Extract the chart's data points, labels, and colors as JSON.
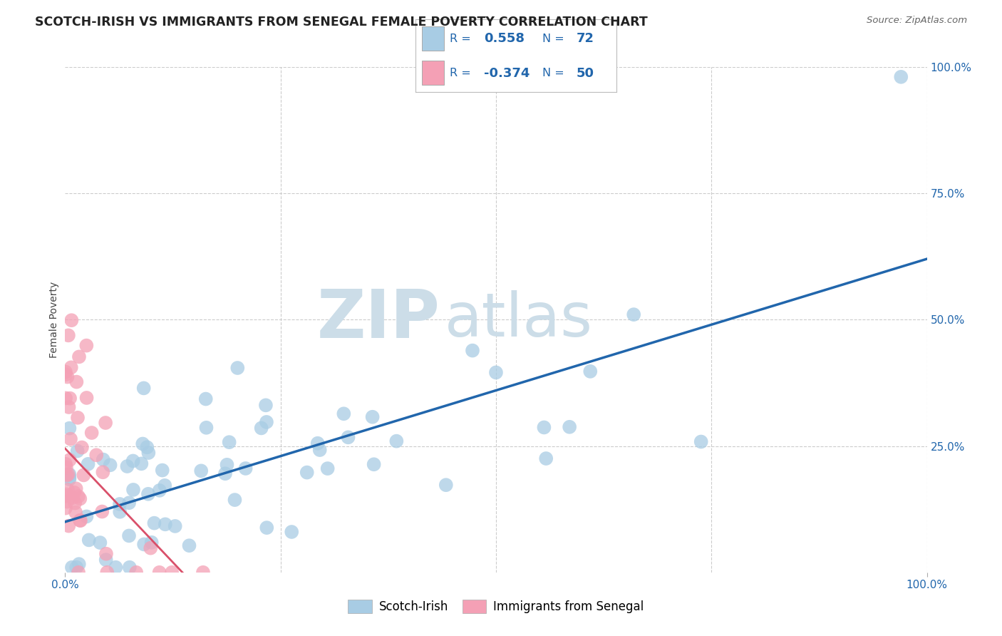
{
  "title": "SCOTCH-IRISH VS IMMIGRANTS FROM SENEGAL FEMALE POVERTY CORRELATION CHART",
  "source": "Source: ZipAtlas.com",
  "ylabel": "Female Poverty",
  "xlim": [
    0,
    1
  ],
  "ylim": [
    0,
    1
  ],
  "ytick_labels_right": [
    "100.0%",
    "75.0%",
    "50.0%",
    "25.0%"
  ],
  "ytick_vals_right": [
    1.0,
    0.75,
    0.5,
    0.25
  ],
  "blue_color": "#a8cce4",
  "pink_color": "#f4a0b5",
  "blue_line_color": "#2166ac",
  "pink_line_color": "#d9506a",
  "blue_R": 0.558,
  "blue_N": 72,
  "pink_R": -0.374,
  "pink_N": 50,
  "watermark_zip": "ZIP",
  "watermark_atlas": "atlas",
  "watermark_color": "#ccdde8",
  "background_color": "#ffffff",
  "grid_color": "#cccccc",
  "title_color": "#222222",
  "legend_text_color": "#2166ac",
  "tick_color": "#2166ac",
  "blue_line_intercept": 0.1,
  "blue_line_slope": 0.52,
  "pink_line_intercept": 0.245,
  "pink_line_slope": -1.8
}
